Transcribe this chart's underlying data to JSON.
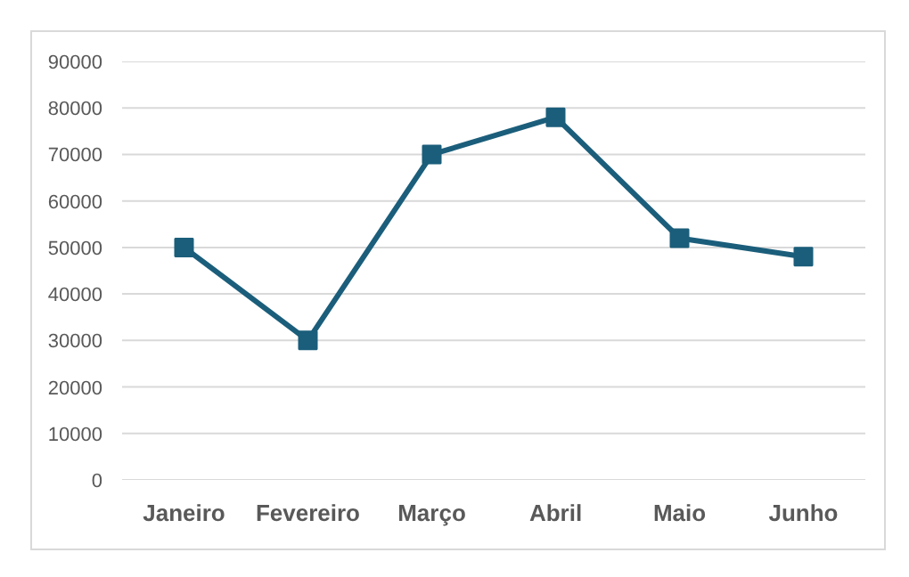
{
  "chart_data": {
    "type": "line",
    "categories": [
      "Janeiro",
      "Fevereiro",
      "Março",
      "Abril",
      "Maio",
      "Junho"
    ],
    "series": [
      {
        "color": "#1b5e7b",
        "values": [
          50000,
          30000,
          70000,
          78000,
          52000,
          48000
        ]
      }
    ],
    "ylim": [
      0,
      90000
    ],
    "yticks": [
      0,
      10000,
      20000,
      30000,
      40000,
      50000,
      60000,
      70000,
      80000,
      90000
    ],
    "grid": "y",
    "marker": "square",
    "line_style": "solid"
  }
}
